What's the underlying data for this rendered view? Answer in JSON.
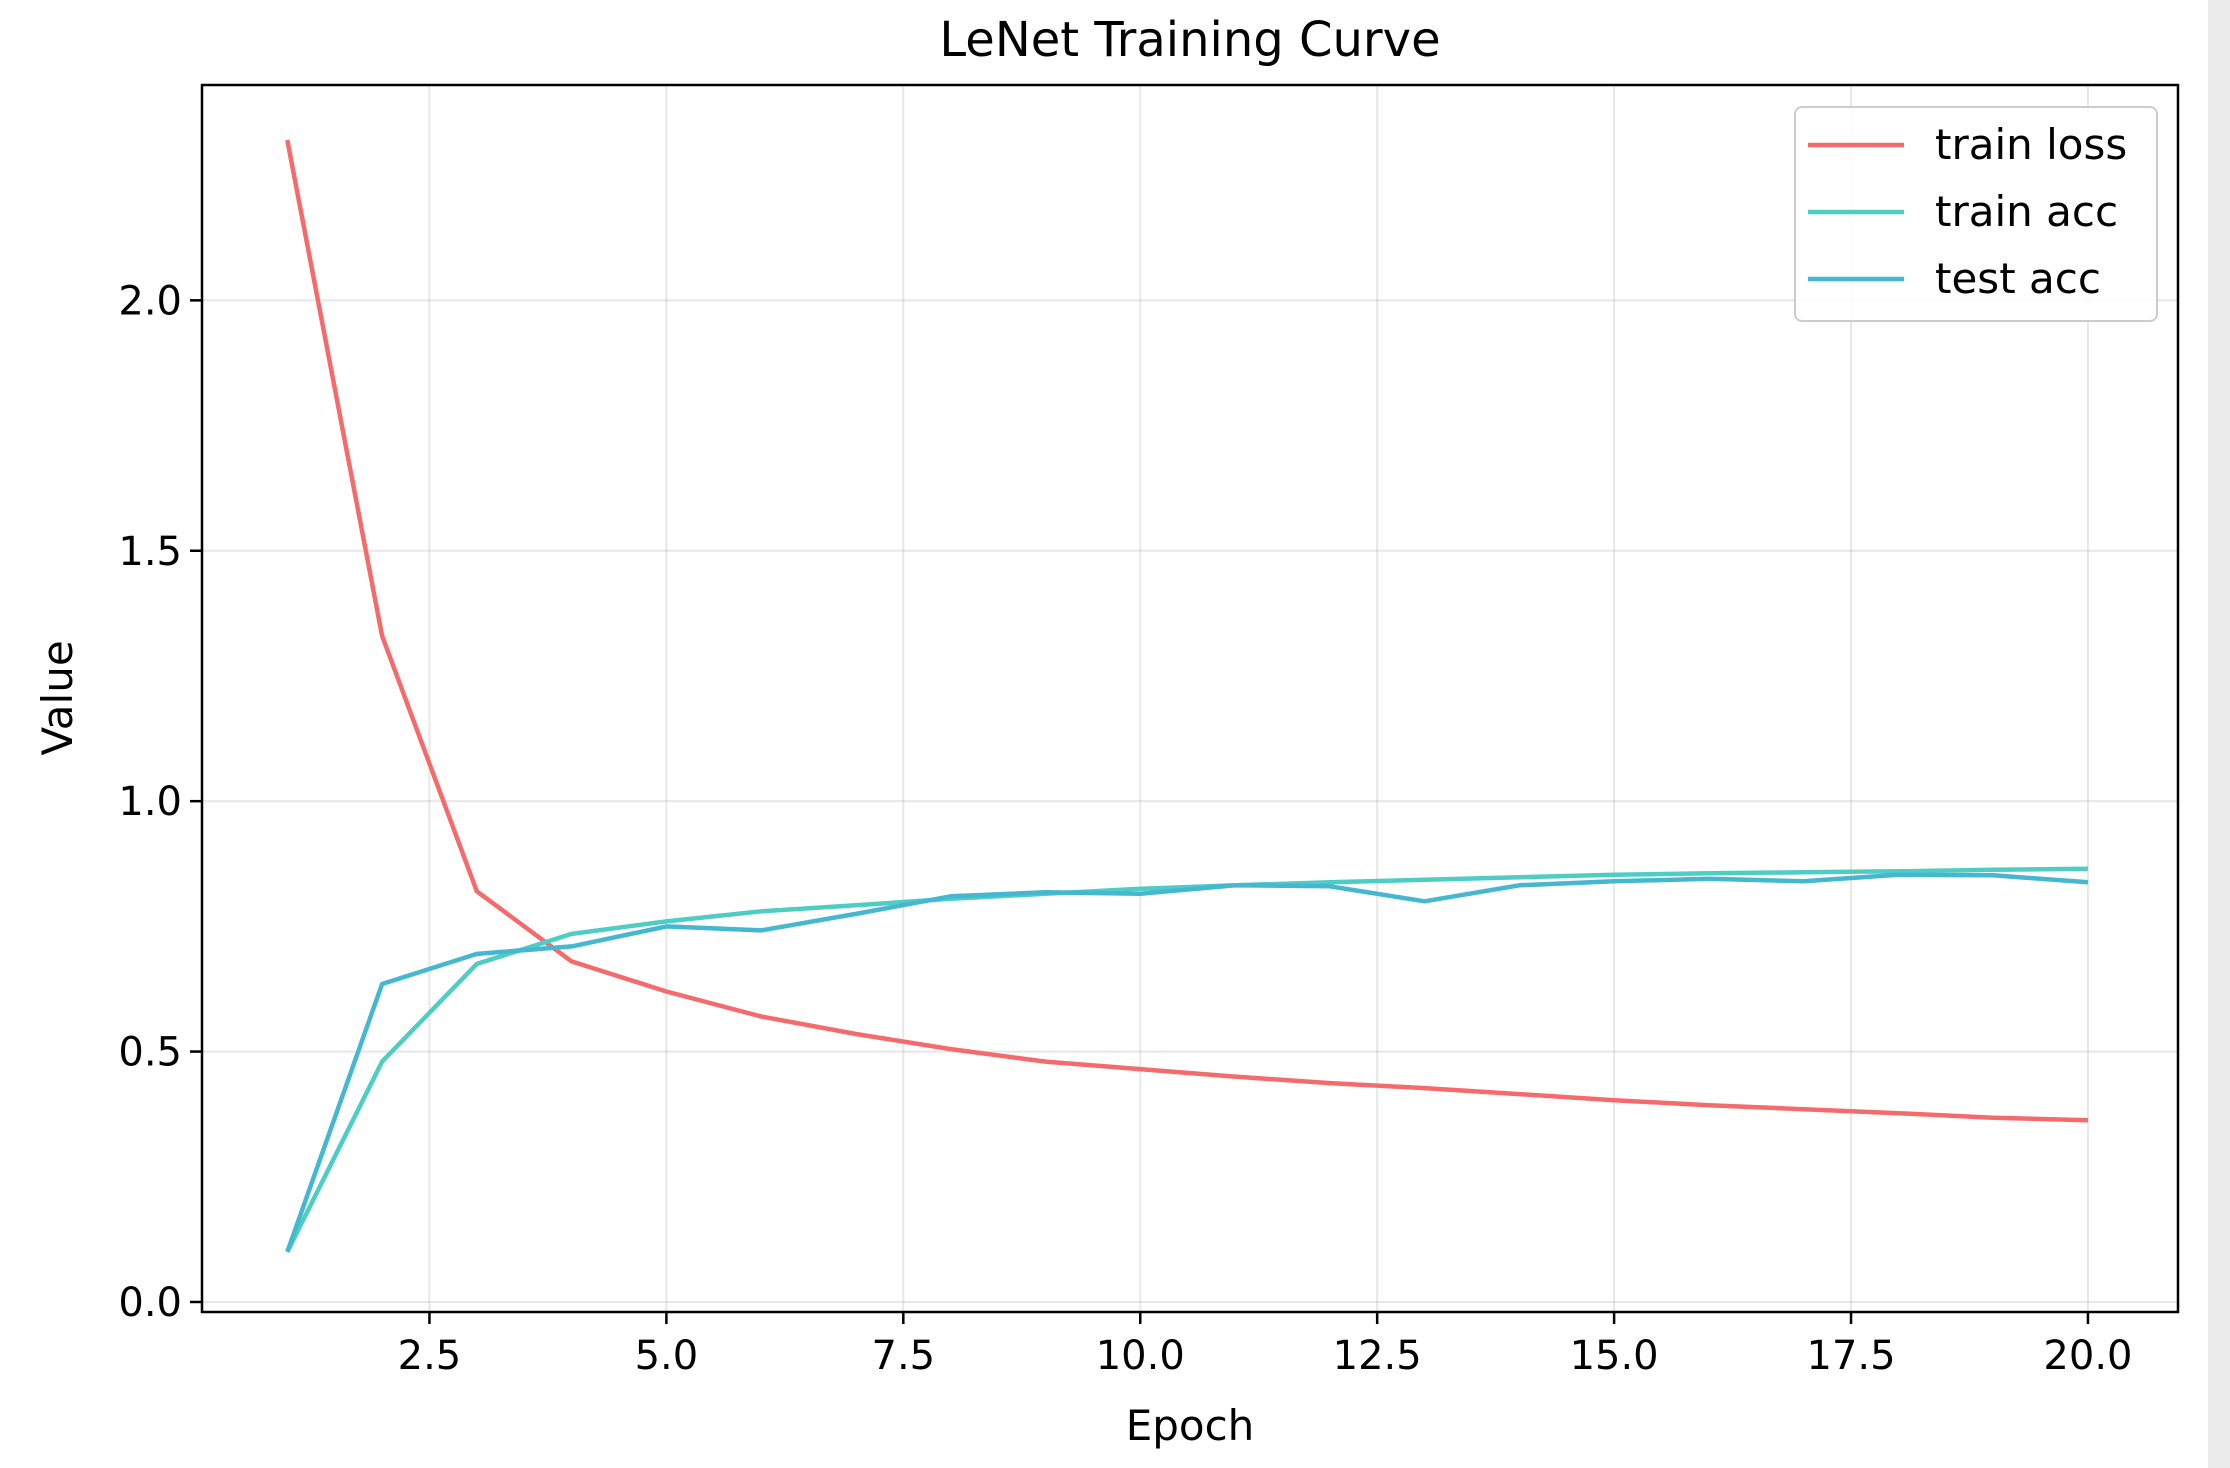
{
  "chart_data": {
    "type": "line",
    "title": "LeNet Training Curve",
    "xlabel": "Epoch",
    "ylabel": "Value",
    "xlim": [
      0.1,
      20.95
    ],
    "ylim": [
      -0.02,
      2.43
    ],
    "xticks": [
      2.5,
      5.0,
      7.5,
      10.0,
      12.5,
      15.0,
      17.5,
      20.0
    ],
    "xtick_labels": [
      "2.5",
      "5.0",
      "7.5",
      "10.0",
      "12.5",
      "15.0",
      "17.5",
      "20.0"
    ],
    "yticks": [
      0.0,
      0.5,
      1.0,
      1.5,
      2.0
    ],
    "ytick_labels": [
      "0.0",
      "0.5",
      "1.0",
      "1.5",
      "2.0"
    ],
    "grid": true,
    "legend_position": "top-right",
    "x": [
      1,
      2,
      3,
      4,
      5,
      6,
      7,
      8,
      9,
      10,
      11,
      12,
      13,
      14,
      15,
      16,
      17,
      18,
      19,
      20
    ],
    "series": [
      {
        "name": "train loss",
        "color": "#f56b6b",
        "values": [
          2.32,
          1.33,
          0.82,
          0.68,
          0.62,
          0.57,
          0.535,
          0.505,
          0.48,
          0.465,
          0.45,
          0.437,
          0.427,
          0.415,
          0.403,
          0.393,
          0.385,
          0.377,
          0.368,
          0.363
        ]
      },
      {
        "name": "train acc",
        "color": "#4ecdc4",
        "values": [
          0.1,
          0.48,
          0.675,
          0.735,
          0.76,
          0.78,
          0.792,
          0.805,
          0.815,
          0.825,
          0.832,
          0.838,
          0.843,
          0.848,
          0.853,
          0.856,
          0.858,
          0.86,
          0.863,
          0.865
        ]
      },
      {
        "name": "test acc",
        "color": "#45b7d1",
        "values": [
          0.1,
          0.635,
          0.695,
          0.71,
          0.75,
          0.742,
          0.775,
          0.81,
          0.818,
          0.815,
          0.832,
          0.83,
          0.8,
          0.832,
          0.84,
          0.845,
          0.84,
          0.853,
          0.852,
          0.838
        ]
      }
    ]
  }
}
